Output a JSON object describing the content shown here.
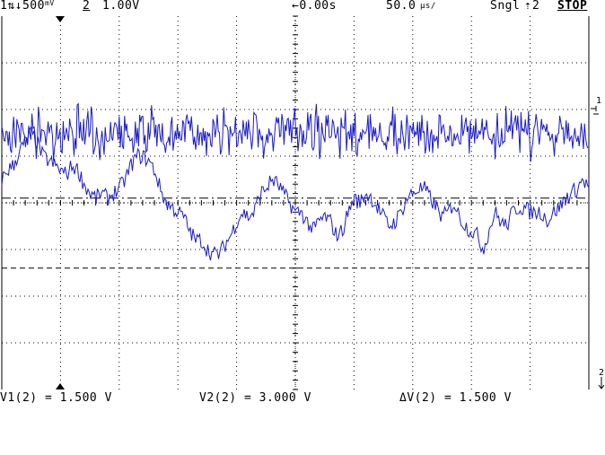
{
  "status_bar": {
    "ch1_scale": "1⇅↓500",
    "ch1_unit": "mV",
    "ch2_label": "2",
    "ch2_scale": "1.00V",
    "time_offset": "←0.00s",
    "timebase": "50.0",
    "timebase_unit": "µs/",
    "trigger_mode": "Sngl",
    "trigger_source": "2",
    "run_state": "STOP"
  },
  "cursor_readout": {
    "v1": "V1(2) = 1.500 V",
    "v2": "V2(2) = 3.000 V",
    "delta_v": "ΔV(2) = 1.500 V"
  },
  "markers": {
    "ch1": "1",
    "ch2": "2"
  },
  "colors": {
    "trace": "#1a1acc",
    "grid": "#000000",
    "background": "#ffffff"
  },
  "chart_data": {
    "type": "line",
    "grid": true,
    "divisions": {
      "x": 10,
      "y": 8
    },
    "series": [
      {
        "channel": "1",
        "description": "noise signal",
        "center_div": 2.5,
        "amplitude_div": 0.6
      },
      {
        "channel": "2",
        "envelope_div": [
          4.5,
          4.7,
          4.8,
          5.1,
          5.3,
          5.5,
          5.3,
          5.0,
          4.9,
          4.8,
          4.7,
          4.6,
          4.8,
          4.7,
          4.4,
          4.2,
          4.1,
          4.2,
          4.1,
          4.2,
          4.3,
          4.5,
          4.8,
          5.0,
          5.0,
          4.9,
          4.7,
          4.3,
          4.0,
          3.9,
          3.8,
          3.7,
          3.4,
          3.2,
          3.2,
          3.0,
          2.9,
          2.9,
          3.1,
          3.3,
          3.6,
          3.8,
          3.7,
          3.8,
          4.2,
          4.3,
          4.5,
          4.4,
          4.2,
          4.0,
          3.8,
          3.8,
          3.6,
          3.4,
          3.6,
          3.7,
          3.6,
          3.3,
          3.4,
          3.8,
          4.1,
          4.0,
          4.2,
          4.1,
          3.9,
          3.7,
          3.5,
          3.6,
          3.8,
          4.1,
          4.2,
          4.3,
          4.3,
          4.1,
          3.9,
          3.7,
          3.8,
          4.0,
          3.7,
          3.5,
          3.4,
          3.3,
          3.0,
          3.4,
          3.8,
          3.6,
          3.5,
          3.8,
          3.9,
          3.9,
          3.8,
          3.8,
          3.8,
          3.6,
          3.8,
          3.9,
          4.1,
          4.2,
          4.3,
          4.5,
          4.3
        ]
      }
    ],
    "cursors": [
      {
        "name": "V1",
        "style": "dashed",
        "value_v": 1.5
      },
      {
        "name": "V2",
        "style": "dash-dot",
        "value_v": 3.0
      }
    ]
  }
}
